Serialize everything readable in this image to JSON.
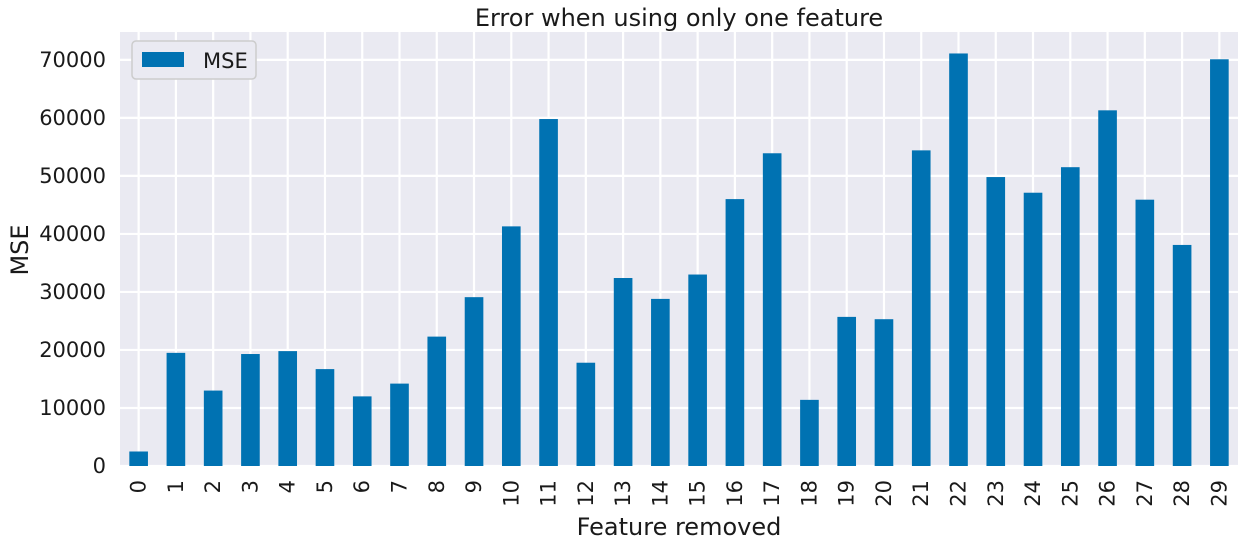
{
  "chart_data": {
    "type": "bar",
    "title": "Error when using only one feature",
    "xlabel": "Feature removed",
    "ylabel": "MSE",
    "categories": [
      "0",
      "1",
      "2",
      "3",
      "4",
      "5",
      "6",
      "7",
      "8",
      "9",
      "10",
      "11",
      "12",
      "13",
      "14",
      "15",
      "16",
      "17",
      "18",
      "19",
      "20",
      "21",
      "22",
      "23",
      "24",
      "25",
      "26",
      "27",
      "28",
      "29"
    ],
    "series": [
      {
        "name": "MSE",
        "color": "#0072b2",
        "values": [
          2500,
          19500,
          13000,
          19300,
          19800,
          16700,
          12000,
          14200,
          22300,
          29100,
          41300,
          59800,
          17800,
          32400,
          28800,
          33000,
          46000,
          53900,
          11400,
          25700,
          25300,
          54400,
          71100,
          49800,
          47100,
          51500,
          61300,
          45900,
          38100,
          70100
        ]
      }
    ],
    "ylim": [
      0,
      74800
    ],
    "yticks": [
      0,
      10000,
      20000,
      30000,
      40000,
      50000,
      60000,
      70000
    ],
    "grid": true,
    "legend_position": "top-left",
    "background": "#eaeaf2",
    "grid_color": "#ffffff"
  }
}
